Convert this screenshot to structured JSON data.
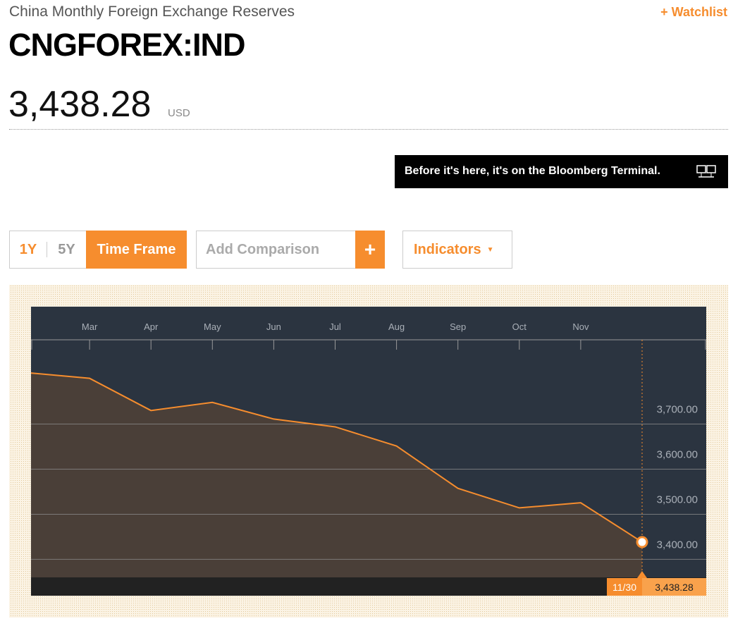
{
  "header": {
    "subtitle": "China Monthly Foreign Exchange Reserves",
    "ticker": "CNGFOREX:IND",
    "price": "3,438.28",
    "currency": "USD",
    "watchlist": "+ Watchlist"
  },
  "banner": "Before it's here, it's on the Bloomberg Terminal.",
  "controls": {
    "ranges": [
      "1Y",
      "5Y"
    ],
    "time_frame": "Time Frame",
    "comparison_placeholder": "Add Comparison",
    "comparison_button": "+",
    "indicators": "Indicators"
  },
  "chart_data": {
    "type": "line",
    "categories": [
      null,
      "Mar",
      "Apr",
      "May",
      "Jun",
      "Jul",
      "Aug",
      "Sep",
      "Oct",
      "Nov",
      null
    ],
    "values": [
      3813.14,
      3801.5,
      3730.04,
      3748.14,
      3711.14,
      3693.84,
      3651.31,
      3557.38,
      3514.12,
      3525.51,
      3438.28
    ],
    "color": "#f68d2e",
    "area_color": "#4a3f38",
    "ylim": [
      3360,
      3865
    ],
    "yticks": [
      {
        "value": 3400,
        "label": "3,400.00"
      },
      {
        "value": 3500,
        "label": "3,500.00"
      },
      {
        "value": 3600,
        "label": "3,600.00"
      },
      {
        "value": 3700,
        "label": "3,700.00"
      }
    ],
    "grid": true,
    "tooltip": {
      "x_label": "11/30",
      "value_label": "3,438.28"
    }
  }
}
